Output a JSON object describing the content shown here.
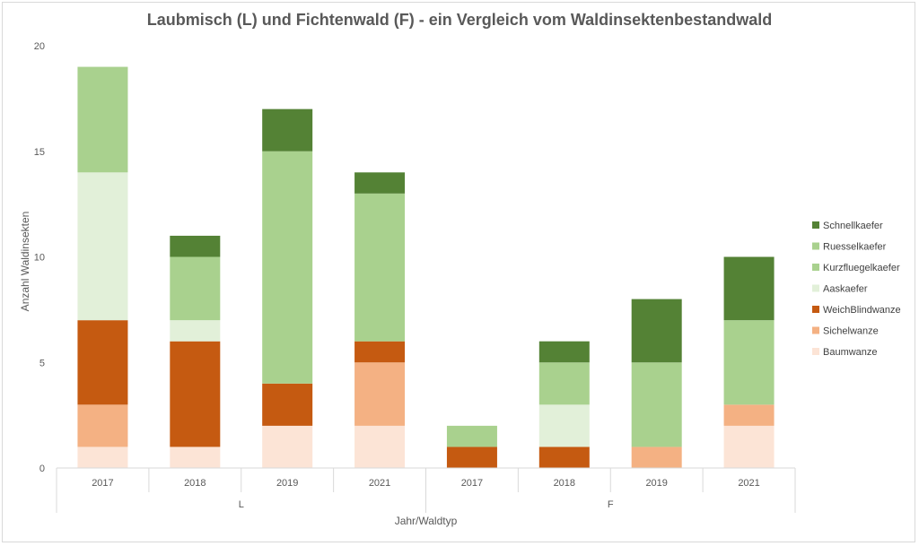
{
  "chart_data": {
    "type": "bar",
    "stacked": true,
    "title": "Laubmisch (L) und Fichtenwald (F) - ein Vergleich vom Waldinsektenbestandwald",
    "xlabel": "Jahr/Waldtyp",
    "ylabel": "Anzahl Waldinsekten",
    "ylim": [
      0,
      20
    ],
    "yticks": [
      0,
      5,
      10,
      15,
      20
    ],
    "grid": false,
    "legend_position": "right",
    "groups": [
      {
        "label": "L",
        "categories": [
          "2017",
          "2018",
          "2019",
          "2021"
        ]
      },
      {
        "label": "F",
        "categories": [
          "2017",
          "2018",
          "2019",
          "2021"
        ]
      }
    ],
    "series": [
      {
        "name": "Baumwanze",
        "color": "#fce4d6",
        "values": [
          1,
          1,
          2,
          2,
          0,
          0,
          0,
          2
        ]
      },
      {
        "name": "Sichelwanze",
        "color": "#f4b183",
        "values": [
          2,
          0,
          0,
          3,
          0,
          0,
          1,
          1
        ]
      },
      {
        "name": "WeichBlindwanze",
        "color": "#c55a11",
        "values": [
          4,
          5,
          2,
          1,
          1,
          1,
          0,
          0
        ]
      },
      {
        "name": "Aaskaefer",
        "color": "#e2f0d9",
        "values": [
          7,
          1,
          0,
          0,
          0,
          2,
          0,
          0
        ]
      },
      {
        "name": "Kurzfluegelkaefer",
        "color": "#a9d18e",
        "values": [
          5,
          3,
          11,
          7,
          1,
          2,
          4,
          4
        ]
      },
      {
        "name": "Ruesselkaefer",
        "color": "#a9d18e",
        "values": [
          0,
          0,
          0,
          0,
          0,
          0,
          0,
          0
        ]
      },
      {
        "name": "Schnellkaefer",
        "color": "#548235",
        "values": [
          0,
          1,
          2,
          1,
          0,
          1,
          3,
          3
        ]
      }
    ]
  }
}
